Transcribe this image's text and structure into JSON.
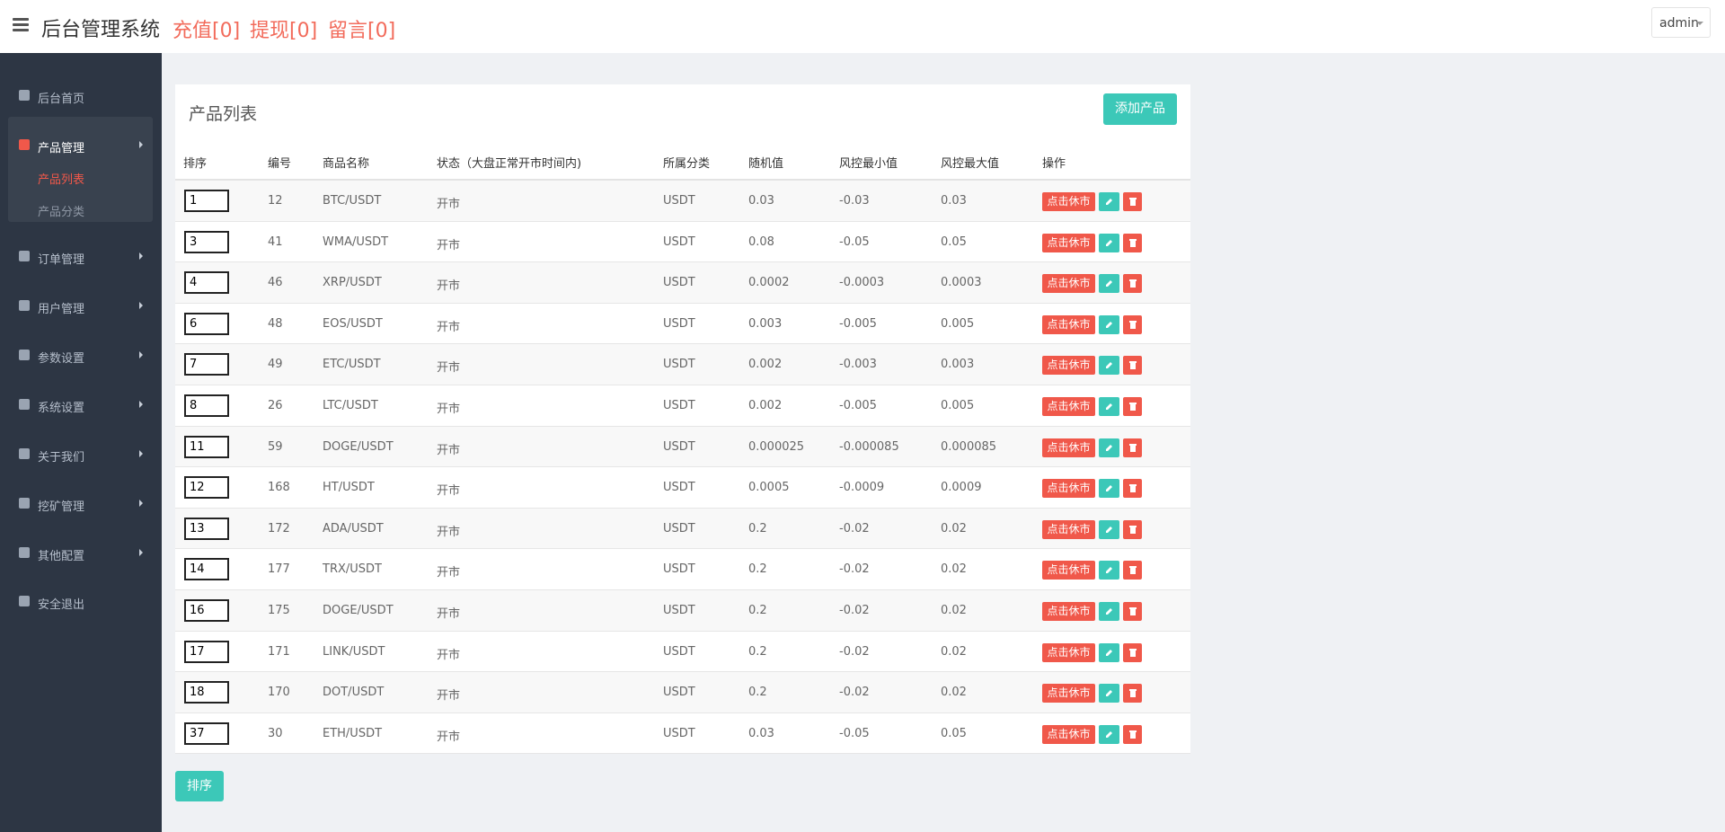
{
  "header": {
    "title": "后台管理系统",
    "links": [
      "充值[0]",
      "提现[0]",
      "留言[0]"
    ],
    "user": "admin"
  },
  "sidebar": {
    "items": [
      {
        "label": "后台首页"
      },
      {
        "label": "产品管理",
        "children": [
          "产品列表",
          "产品分类"
        ]
      },
      {
        "label": "订单管理"
      },
      {
        "label": "用户管理"
      },
      {
        "label": "参数设置"
      },
      {
        "label": "系统设置"
      },
      {
        "label": "关于我们"
      },
      {
        "label": "挖矿管理"
      },
      {
        "label": "其他配置"
      },
      {
        "label": "安全退出"
      }
    ]
  },
  "panel": {
    "title": "产品列表",
    "add_button": "添加产品"
  },
  "table": {
    "columns": [
      "排序",
      "编号",
      "商品名称",
      "状态（大盘正常开市时间内)",
      "所属分类",
      "随机值",
      "风控最小值",
      "风控最大值",
      "操作"
    ],
    "action": "点击休市",
    "rows": [
      [
        "1",
        "12",
        "BTC/USDT",
        "开市",
        "USDT",
        "0.03",
        "-0.03",
        "0.03"
      ],
      [
        "3",
        "41",
        "WMA/USDT",
        "开市",
        "USDT",
        "0.08",
        "-0.05",
        "0.05"
      ],
      [
        "4",
        "46",
        "XRP/USDT",
        "开市",
        "USDT",
        "0.0002",
        "-0.0003",
        "0.0003"
      ],
      [
        "6",
        "48",
        "EOS/USDT",
        "开市",
        "USDT",
        "0.003",
        "-0.005",
        "0.005"
      ],
      [
        "7",
        "49",
        "ETC/USDT",
        "开市",
        "USDT",
        "0.002",
        "-0.003",
        "0.003"
      ],
      [
        "8",
        "26",
        "LTC/USDT",
        "开市",
        "USDT",
        "0.002",
        "-0.005",
        "0.005"
      ],
      [
        "11",
        "59",
        "DOGE/USDT",
        "开市",
        "USDT",
        "0.000025",
        "-0.000085",
        "0.000085"
      ],
      [
        "12",
        "168",
        "HT/USDT",
        "开市",
        "USDT",
        "0.0005",
        "-0.0009",
        "0.0009"
      ],
      [
        "13",
        "172",
        "ADA/USDT",
        "开市",
        "USDT",
        "0.2",
        "-0.02",
        "0.02"
      ],
      [
        "14",
        "177",
        "TRX/USDT",
        "开市",
        "USDT",
        "0.2",
        "-0.02",
        "0.02"
      ],
      [
        "16",
        "175",
        "DOGE/USDT",
        "开市",
        "USDT",
        "0.2",
        "-0.02",
        "0.02"
      ],
      [
        "17",
        "171",
        "LINK/USDT",
        "开市",
        "USDT",
        "0.2",
        "-0.02",
        "0.02"
      ],
      [
        "18",
        "170",
        "DOT/USDT",
        "开市",
        "USDT",
        "0.2",
        "-0.02",
        "0.02"
      ],
      [
        "37",
        "30",
        "ETH/USDT",
        "开市",
        "USDT",
        "0.03",
        "-0.05",
        "0.05"
      ]
    ]
  },
  "sort_button": "排序"
}
